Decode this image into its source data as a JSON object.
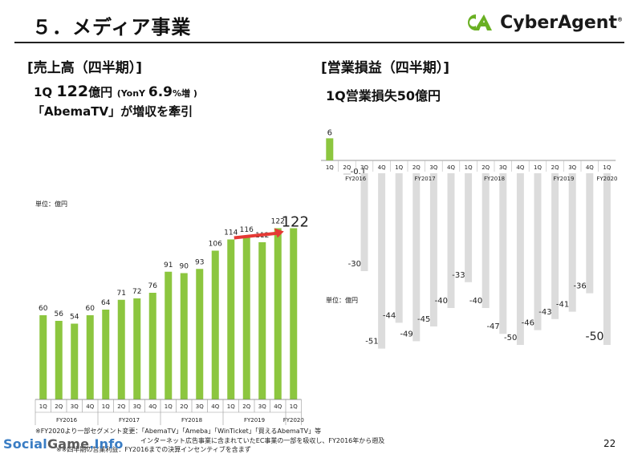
{
  "header": {
    "title": "５．メディア事業",
    "logo_text": "CyberAgent",
    "logo_reg": "®",
    "colors": {
      "brand_green": "#6ab023",
      "brand_navy": "#1a1a1a"
    }
  },
  "left": {
    "section_title": "[売上高（四半期）]",
    "highlight_prefix": "1Q ",
    "highlight_value": "122",
    "highlight_unit": "億円",
    "highlight_yoy_prefix": "(YonY ",
    "highlight_yoy_value": "6.9",
    "highlight_yoy_suffix": "%増 )",
    "highlight_line2": "「AbemaTV」が増収を牽引",
    "unit": "単位：億円"
  },
  "right": {
    "section_title": "[営業損益（四半期）]",
    "highlight": "1Q営業損失50億円",
    "unit": "単位：億円"
  },
  "footnotes": [
    "※FY2020より一部セグメント変更：「AbemaTV」「Ameba」「WinTicket」「買えるAbemaTV」等",
    "インターネット広告事業に含まれていたEC事業の一部を吸収し、FY2016年から遡及",
    "※※四半期の営業利益：FY2016までの決算インセンティブを含まず"
  ],
  "page_number": "22",
  "watermark": {
    "part1": "Social",
    "part2": "Game",
    "part3": "Info"
  },
  "chart_data": [
    {
      "type": "bar",
      "title": "[売上高（四半期）]",
      "unit": "単位：億円",
      "quarters": [
        "1Q",
        "2Q",
        "3Q",
        "4Q",
        "1Q",
        "2Q",
        "3Q",
        "4Q",
        "1Q",
        "2Q",
        "3Q",
        "4Q",
        "1Q",
        "2Q",
        "3Q",
        "4Q",
        "1Q"
      ],
      "fiscal_years": [
        {
          "label": "FY2016",
          "count": 4
        },
        {
          "label": "FY2017",
          "count": 4
        },
        {
          "label": "FY2018",
          "count": 4
        },
        {
          "label": "FY2019",
          "count": 4
        },
        {
          "label": "FY2020",
          "count": 1
        }
      ],
      "values": [
        60,
        56,
        54,
        60,
        64,
        71,
        72,
        76,
        91,
        90,
        93,
        106,
        114,
        116,
        112,
        122,
        122
      ],
      "value_labels": [
        "60",
        "56",
        "54",
        "60",
        "64",
        "71",
        "72",
        "76",
        "91",
        "90",
        "93",
        "106",
        "114",
        "116",
        "112",
        "122",
        "122"
      ],
      "ylim": [
        0,
        130
      ],
      "color": "#8cc63f",
      "arrow_color": "#e53935"
    },
    {
      "type": "bar",
      "title": "[営業損益（四半期）]",
      "unit": "単位：億円",
      "quarters": [
        "1Q",
        "2Q",
        "3Q",
        "4Q",
        "1Q",
        "2Q",
        "3Q",
        "4Q",
        "1Q",
        "2Q",
        "3Q",
        "4Q",
        "1Q",
        "2Q",
        "3Q",
        "4Q",
        "1Q"
      ],
      "fiscal_years": [
        {
          "label": "FY2016",
          "count": 4
        },
        {
          "label": "FY2017",
          "count": 4
        },
        {
          "label": "FY2018",
          "count": 4
        },
        {
          "label": "FY2019",
          "count": 4
        },
        {
          "label": "FY2020",
          "count": 1
        }
      ],
      "values": [
        6,
        -0.1,
        -30,
        -51,
        -44,
        -49,
        -45,
        -40,
        -33,
        -40,
        -47,
        -50,
        -46,
        -43,
        -41,
        -36,
        -50
      ],
      "value_labels": [
        "6",
        "-0.1",
        "-30",
        "-51",
        "-44",
        "-49",
        "-45",
        "-40",
        "-33",
        "-40",
        "-47",
        "-50",
        "-46",
        "-43",
        "-41",
        "-36",
        "-50"
      ],
      "ylim": [
        -52,
        8
      ],
      "positive_color": "#8cc63f",
      "negative_color": "#dcdcdc"
    }
  ]
}
